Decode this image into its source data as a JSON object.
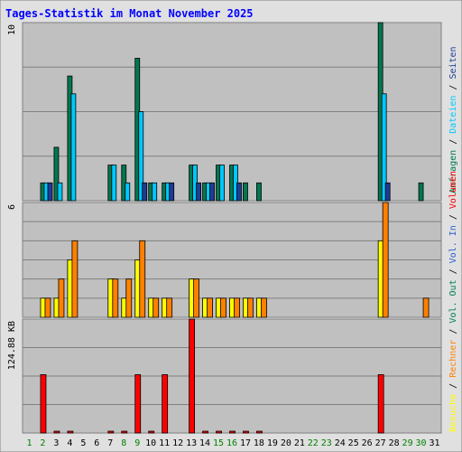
{
  "title": "Tages-Statistik im Monat November 2025",
  "colors": {
    "background": "#e0e0e0",
    "plot_bg": "#c0c0c0",
    "anfragen": "#007850",
    "dateien": "#00c8ff",
    "seiten": "#1e3c96",
    "besuche": "#ffff00",
    "rechner": "#ff8000",
    "volumen": "#ff0000",
    "weekday_label": "#000000",
    "weekend_label": "#008000"
  },
  "chart_data": [
    {
      "type": "bar",
      "panel": "top",
      "y_max_label": "10",
      "ylim": [
        0,
        10
      ],
      "legend": [
        "Anfragen",
        "/",
        "Dateien",
        "/",
        "Seiten"
      ],
      "categories": [
        "1",
        "2",
        "3",
        "4",
        "5",
        "6",
        "7",
        "8",
        "9",
        "10",
        "11",
        "12",
        "13",
        "14",
        "15",
        "16",
        "17",
        "18",
        "19",
        "20",
        "21",
        "22",
        "23",
        "24",
        "25",
        "26",
        "27",
        "28",
        "29",
        "30",
        "31"
      ],
      "series": [
        {
          "name": "Anfragen",
          "values": [
            0,
            1,
            3,
            7,
            0,
            0,
            2,
            2,
            8,
            1,
            1,
            0,
            2,
            1,
            2,
            2,
            1,
            1,
            0,
            0,
            0,
            0,
            0,
            0,
            0,
            0,
            10,
            0,
            0,
            1,
            0
          ]
        },
        {
          "name": "Dateien",
          "values": [
            0,
            1,
            1,
            6,
            0,
            0,
            2,
            1,
            5,
            1,
            1,
            0,
            2,
            1,
            2,
            2,
            0,
            0,
            0,
            0,
            0,
            0,
            0,
            0,
            0,
            0,
            6,
            0,
            0,
            0,
            0
          ]
        },
        {
          "name": "Seiten",
          "values": [
            0,
            1,
            0,
            0,
            0,
            0,
            0,
            0,
            1,
            0,
            1,
            0,
            1,
            1,
            0,
            1,
            0,
            0,
            0,
            0,
            0,
            0,
            0,
            0,
            0,
            0,
            1,
            0,
            0,
            0,
            0
          ]
        }
      ]
    },
    {
      "type": "bar",
      "panel": "middle",
      "y_max_label": "6",
      "ylim": [
        0,
        6
      ],
      "legend": [
        "Besuche",
        "/",
        "Rechner",
        "/",
        "Vol. Out",
        "/",
        "Vol. In",
        "/",
        "Volumen"
      ],
      "categories": [
        "1",
        "2",
        "3",
        "4",
        "5",
        "6",
        "7",
        "8",
        "9",
        "10",
        "11",
        "12",
        "13",
        "14",
        "15",
        "16",
        "17",
        "18",
        "19",
        "20",
        "21",
        "22",
        "23",
        "24",
        "25",
        "26",
        "27",
        "28",
        "29",
        "30",
        "31"
      ],
      "series": [
        {
          "name": "Besuche",
          "values": [
            0,
            1,
            1,
            3,
            0,
            0,
            2,
            1,
            3,
            1,
            1,
            0,
            2,
            1,
            1,
            1,
            1,
            1,
            0,
            0,
            0,
            0,
            0,
            0,
            0,
            0,
            4,
            0,
            0,
            0,
            0
          ]
        },
        {
          "name": "Rechner",
          "values": [
            0,
            1,
            2,
            4,
            0,
            0,
            2,
            2,
            4,
            1,
            1,
            0,
            2,
            1,
            1,
            1,
            1,
            1,
            0,
            0,
            0,
            0,
            0,
            0,
            0,
            0,
            6,
            0,
            0,
            1,
            0
          ]
        }
      ]
    },
    {
      "type": "bar",
      "panel": "bottom",
      "y_max_label": "124.88 KB",
      "ylim": [
        0,
        124.88
      ],
      "categories": [
        "1",
        "2",
        "3",
        "4",
        "5",
        "6",
        "7",
        "8",
        "9",
        "10",
        "11",
        "12",
        "13",
        "14",
        "15",
        "16",
        "17",
        "18",
        "19",
        "20",
        "21",
        "22",
        "23",
        "24",
        "25",
        "26",
        "27",
        "28",
        "29",
        "30",
        "31"
      ],
      "series": [
        {
          "name": "Volumen",
          "values": [
            0,
            64,
            1,
            1,
            0,
            0,
            1,
            1,
            64,
            1,
            64,
            0,
            124.88,
            1,
            1,
            1,
            1,
            1,
            0,
            0,
            0,
            0,
            0,
            0,
            0,
            0,
            64,
            0,
            0,
            0,
            0
          ]
        }
      ]
    }
  ],
  "x_labels": [
    "1",
    "2",
    "3",
    "4",
    "5",
    "6",
    "7",
    "8",
    "9",
    "10",
    "11",
    "12",
    "13",
    "14",
    "15",
    "16",
    "17",
    "18",
    "19",
    "20",
    "21",
    "22",
    "23",
    "24",
    "25",
    "26",
    "27",
    "28",
    "29",
    "30",
    "31"
  ],
  "weekend_days": [
    1,
    2,
    8,
    9,
    15,
    16,
    22,
    23,
    29,
    30
  ]
}
